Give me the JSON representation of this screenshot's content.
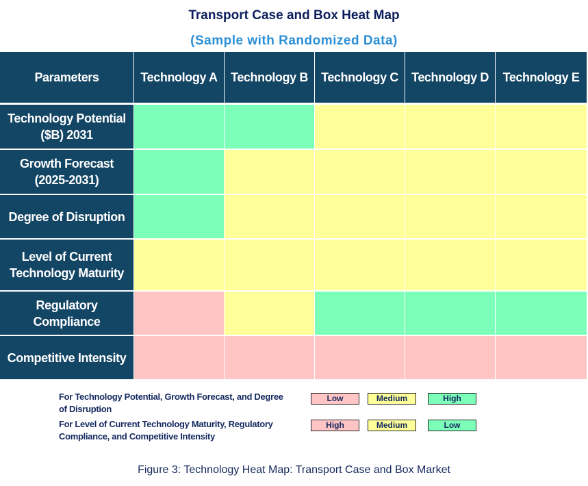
{
  "chart_data": {
    "type": "heatmap",
    "title": "Transport Case and Box Heat Map",
    "subtitle": "(Sample with Randomized Data)",
    "corner_label": "Parameters",
    "columns": [
      "Technology A",
      "Technology B",
      "Technology C",
      "Technology D",
      "Technology E"
    ],
    "rows": [
      {
        "label": "Technology Potential ($B) 2031",
        "scale": "scale_1",
        "values": [
          "High",
          "High",
          "Medium",
          "Medium",
          "Medium"
        ]
      },
      {
        "label": "Growth Forecast (2025-2031)",
        "scale": "scale_1",
        "values": [
          "High",
          "Medium",
          "Medium",
          "Medium",
          "Medium"
        ]
      },
      {
        "label": "Degree of Disruption",
        "scale": "scale_1",
        "values": [
          "High",
          "Medium",
          "Medium",
          "Medium",
          "Medium"
        ]
      },
      {
        "label": "Level of Current Technology Maturity",
        "scale": "scale_2",
        "values": [
          "Medium",
          "Medium",
          "Medium",
          "Medium",
          "Medium"
        ]
      },
      {
        "label": "Regulatory Compliance",
        "scale": "scale_2",
        "values": [
          "High",
          "Medium",
          "Low",
          "Low",
          "Low"
        ]
      },
      {
        "label": "Competitive Intensity",
        "scale": "scale_2",
        "values": [
          "High",
          "High",
          "High",
          "High",
          "High"
        ]
      }
    ],
    "legend": {
      "scale_1": {
        "text": "For Technology Potential, Growth Forecast, and Degree of Disruption",
        "items": [
          {
            "label": "Low",
            "color": "#ffc4c4"
          },
          {
            "label": "Medium",
            "color": "#ffff99"
          },
          {
            "label": "High",
            "color": "#7cffb8"
          }
        ]
      },
      "scale_2": {
        "text": "For Level of Current Technology Maturity, Regulatory Compliance, and Competitive Intensity",
        "items": [
          {
            "label": "High",
            "color": "#ffc4c4"
          },
          {
            "label": "Medium",
            "color": "#ffff99"
          },
          {
            "label": "Low",
            "color": "#7cffb8"
          }
        ]
      }
    },
    "caption": "Figure 3: Technology Heat Map: Transport Case and Box Market",
    "colors": {
      "header": "#134565",
      "title": "#0c1f5c",
      "subtitle": "#2b8fd6"
    }
  }
}
